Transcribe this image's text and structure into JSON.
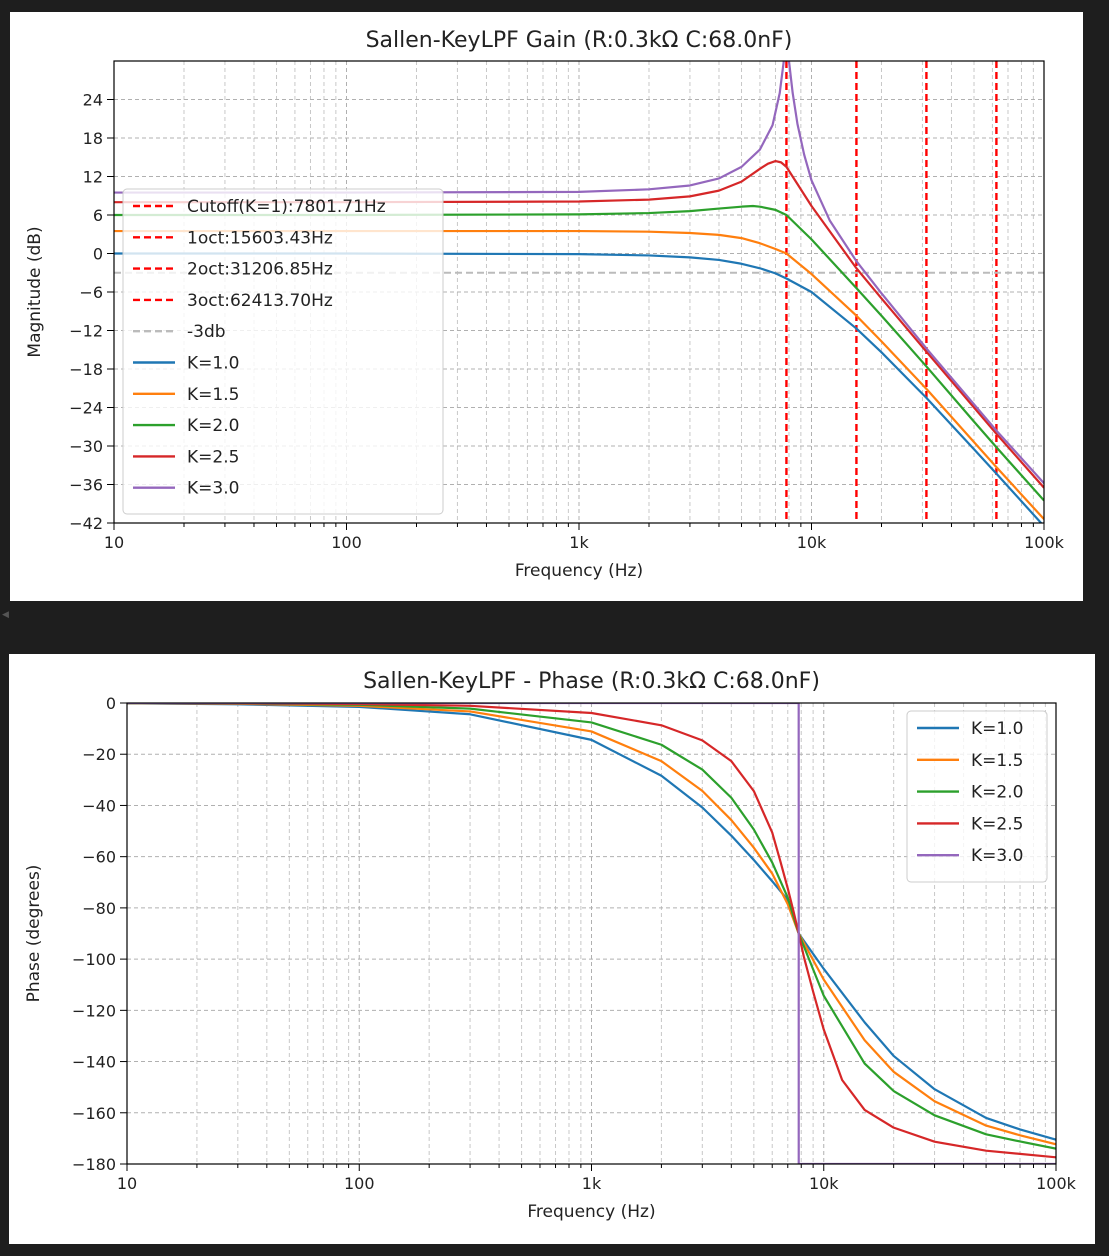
{
  "chart_data": [
    {
      "type": "line",
      "title": "Sallen-KeyLPF Gain (R:0.3kΩ C:68.0nF)",
      "xlabel": "Frequency (Hz)",
      "ylabel": "Magnitude (dB)",
      "xscale": "log",
      "xlim": [
        10,
        100000
      ],
      "ylim": [
        -42,
        30
      ],
      "xticks": [
        {
          "value": 10,
          "label": "10"
        },
        {
          "value": 100,
          "label": "100"
        },
        {
          "value": 1000,
          "label": "1k"
        },
        {
          "value": 10000,
          "label": "10k"
        },
        {
          "value": 100000,
          "label": "100k"
        }
      ],
      "yticks": [
        {
          "value": 24,
          "label": "24"
        },
        {
          "value": 18,
          "label": "18"
        },
        {
          "value": 12,
          "label": "12"
        },
        {
          "value": 6,
          "label": "6"
        },
        {
          "value": 0,
          "label": "0"
        },
        {
          "value": -6,
          "label": "−6"
        },
        {
          "value": -12,
          "label": "−12"
        },
        {
          "value": -18,
          "label": "−18"
        },
        {
          "value": -24,
          "label": "−24"
        },
        {
          "value": -30,
          "label": "−30"
        },
        {
          "value": -36,
          "label": "−36"
        },
        {
          "value": -42,
          "label": "−42"
        }
      ],
      "grid": true,
      "legend_position": "center-left",
      "vlines": [
        {
          "x": 7801.71,
          "label": "Cutoff(K=1):7801.71Hz",
          "color": "#ff0000",
          "style": "dashed"
        },
        {
          "x": 15603.43,
          "label": "1oct:15603.43Hz",
          "color": "#ff0000",
          "style": "dashed"
        },
        {
          "x": 31206.85,
          "label": "2oct:31206.85Hz",
          "color": "#ff0000",
          "style": "dashed"
        },
        {
          "x": 62413.7,
          "label": "3oct:62413.70Hz",
          "color": "#ff0000",
          "style": "dashed"
        }
      ],
      "hlines": [
        {
          "y": -3,
          "label": "-3db",
          "color": "#bbbbbb",
          "style": "dashed"
        }
      ],
      "series": [
        {
          "name": "K=1.0",
          "color": "#1f77b4",
          "x": [
            10,
            100,
            1000,
            2000,
            3000,
            4000,
            5000,
            6000,
            7000,
            7801.71,
            10000,
            15603.43,
            20000,
            31206.85,
            50000,
            62413.7,
            100000
          ],
          "values": [
            0,
            0,
            -0.1,
            -0.3,
            -0.6,
            -1.0,
            -1.6,
            -2.3,
            -3.1,
            -3.9,
            -6.0,
            -11.7,
            -15.4,
            -22.5,
            -30.5,
            -34.3,
            -42.5
          ]
        },
        {
          "name": "K=1.5",
          "color": "#ff7f0e",
          "x": [
            10,
            100,
            1000,
            2000,
            3000,
            4000,
            5000,
            6000,
            7000,
            7801.71,
            10000,
            15603.43,
            20000,
            31206.85,
            50000,
            62413.7,
            100000
          ],
          "values": [
            3.5,
            3.5,
            3.5,
            3.4,
            3.2,
            2.9,
            2.4,
            1.6,
            0.7,
            0,
            -3.2,
            -9.7,
            -13.7,
            -21.1,
            -29.4,
            -33.3,
            -41.4
          ]
        },
        {
          "name": "K=2.0",
          "color": "#2ca02c",
          "x": [
            10,
            100,
            1000,
            2000,
            3000,
            4000,
            5000,
            5600,
            6000,
            7000,
            7801.71,
            10000,
            15603.43,
            20000,
            31206.85,
            50000,
            62413.7,
            100000
          ],
          "values": [
            6.0,
            6.0,
            6.1,
            6.3,
            6.6,
            7.0,
            7.3,
            7.4,
            7.3,
            6.8,
            6.0,
            2.2,
            -5.4,
            -9.7,
            -17.6,
            -26.2,
            -30.2,
            -38.5
          ]
        },
        {
          "name": "K=2.5",
          "color": "#d62728",
          "x": [
            10,
            100,
            1000,
            2000,
            3000,
            4000,
            5000,
            6000,
            6500,
            7000,
            7400,
            7801.71,
            8500,
            10000,
            15603.43,
            20000,
            31206.85,
            50000,
            62413.7,
            100000
          ],
          "values": [
            8.0,
            8.0,
            8.1,
            8.4,
            8.9,
            9.8,
            11.2,
            13.2,
            14.0,
            14.4,
            14.2,
            13.5,
            11.4,
            7.4,
            -2.3,
            -7.0,
            -15.3,
            -24.0,
            -28.1,
            -36.5
          ]
        },
        {
          "name": "K=3.0",
          "color": "#9467bd",
          "x": [
            10,
            100,
            1000,
            2000,
            3000,
            4000,
            5000,
            6000,
            6800,
            7300,
            7600,
            7801.71,
            8000,
            8300,
            8700,
            9300,
            10000,
            12000,
            15603.43,
            20000,
            31206.85,
            50000,
            62413.7,
            100000
          ],
          "values": [
            9.5,
            9.5,
            9.6,
            10.0,
            10.6,
            11.7,
            13.5,
            16.2,
            20.0,
            25.0,
            30.0,
            34.0,
            30.0,
            25.0,
            20.2,
            15.4,
            11.4,
            5.1,
            -1.2,
            -6.2,
            -14.8,
            -23.5,
            -27.6,
            -35.8
          ]
        }
      ]
    },
    {
      "type": "line",
      "title": "Sallen-KeyLPF - Phase (R:0.3kΩ C:68.0nF)",
      "xlabel": "Frequency (Hz)",
      "ylabel": "Phase (degrees)",
      "xscale": "log",
      "xlim": [
        10,
        100000
      ],
      "ylim": [
        -180,
        0
      ],
      "xticks": [
        {
          "value": 10,
          "label": "10"
        },
        {
          "value": 100,
          "label": "100"
        },
        {
          "value": 1000,
          "label": "1k"
        },
        {
          "value": 10000,
          "label": "10k"
        },
        {
          "value": 100000,
          "label": "100k"
        }
      ],
      "yticks": [
        {
          "value": 0,
          "label": "0"
        },
        {
          "value": -20,
          "label": "−20"
        },
        {
          "value": -40,
          "label": "−40"
        },
        {
          "value": -60,
          "label": "−60"
        },
        {
          "value": -80,
          "label": "−80"
        },
        {
          "value": -100,
          "label": "−100"
        },
        {
          "value": -120,
          "label": "−120"
        },
        {
          "value": -140,
          "label": "−140"
        },
        {
          "value": -160,
          "label": "−160"
        },
        {
          "value": -180,
          "label": "−180"
        }
      ],
      "grid": true,
      "legend_position": "top-right",
      "series": [
        {
          "name": "K=1.0",
          "color": "#1f77b4",
          "x": [
            10,
            30,
            100,
            300,
            1000,
            2000,
            3000,
            4000,
            5000,
            6000,
            7000,
            7801.71,
            10000,
            15000,
            20000,
            30000,
            50000,
            70000,
            100000
          ],
          "values": [
            -0.1,
            -0.5,
            -1.5,
            -4.4,
            -14.4,
            -28.4,
            -40.8,
            -51.8,
            -61.3,
            -69.6,
            -76.9,
            -90.0,
            -103.8,
            -124.7,
            -137.8,
            -150.8,
            -162.0,
            -166.5,
            -170.5
          ]
        },
        {
          "name": "K=1.5",
          "color": "#ff7f0e",
          "x": [
            10,
            30,
            100,
            300,
            1000,
            2000,
            3000,
            4000,
            5000,
            6000,
            7000,
            7801.71,
            10000,
            15000,
            20000,
            30000,
            50000,
            70000,
            100000
          ],
          "values": [
            -0.1,
            -0.3,
            -1.1,
            -3.3,
            -11.1,
            -22.7,
            -34.3,
            -45.7,
            -56.5,
            -66.6,
            -78.6,
            -90.0,
            -108.0,
            -131.7,
            -144.0,
            -155.5,
            -165.0,
            -168.8,
            -172.3
          ]
        },
        {
          "name": "K=2.0",
          "color": "#2ca02c",
          "x": [
            10,
            30,
            100,
            300,
            1000,
            2000,
            3000,
            4000,
            5000,
            6000,
            7000,
            7801.71,
            10000,
            15000,
            20000,
            30000,
            50000,
            70000,
            100000
          ],
          "values": [
            -0.1,
            -0.2,
            -0.7,
            -2.2,
            -7.6,
            -16.3,
            -26.0,
            -37.0,
            -49.4,
            -62.3,
            -76.0,
            -90.0,
            -114.3,
            -140.8,
            -151.5,
            -161.0,
            -168.4,
            -171.2,
            -174.0
          ]
        },
        {
          "name": "K=2.5",
          "color": "#d62728",
          "x": [
            10,
            30,
            100,
            300,
            1000,
            2000,
            3000,
            4000,
            5000,
            6000,
            6500,
            7000,
            7400,
            7801.71,
            8200,
            9000,
            10000,
            12000,
            15000,
            20000,
            30000,
            50000,
            100000
          ],
          "values": [
            0,
            -0.1,
            -0.4,
            -1.1,
            -3.9,
            -8.7,
            -14.6,
            -22.7,
            -34.4,
            -50.6,
            -61.7,
            -72.4,
            -81.1,
            -90.0,
            -98.9,
            -112.7,
            -127.5,
            -147.2,
            -158.9,
            -165.8,
            -171.3,
            -174.8,
            -177.4
          ]
        },
        {
          "name": "K=3.0",
          "color": "#9467bd",
          "x": [
            10,
            100,
            1000,
            7800,
            7801.71,
            7803,
            10000,
            100000
          ],
          "values": [
            0,
            0,
            0,
            0,
            -90,
            -180,
            -180,
            -180
          ]
        }
      ]
    }
  ]
}
